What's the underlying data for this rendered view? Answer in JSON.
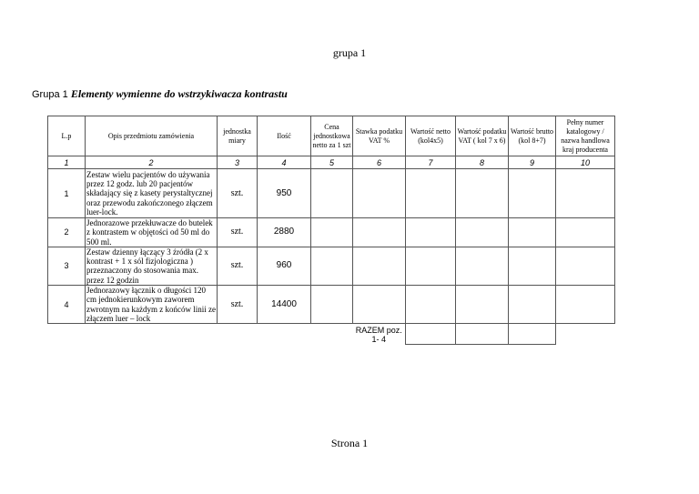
{
  "header": "grupa 1",
  "footer": "Strona 1",
  "group": {
    "prefix": "Grupa 1",
    "title": "Elementy wymienne do wstrzykiwacza kontrastu"
  },
  "columns": [
    "L.p",
    "Opis przedmiotu zamówienia",
    "jednostka miary",
    "Ilość",
    "Cena jednostkowa netto  za 1 szt",
    "Stawka podatku VAT %",
    "Wartość netto (kol4x5)",
    "Wartość podatku VAT ( kol 7 x 6)",
    "Wartość brutto (kol 8+7)",
    "Pełny numer katalogowy / nazwa handlowa kraj producenta"
  ],
  "column_numbers": [
    "1",
    "2",
    "3",
    "4",
    "5",
    "6",
    "7",
    "8",
    "9",
    "10"
  ],
  "rows": [
    {
      "lp": "1",
      "desc": "Zestaw wielu pacjentów do używania przez 12 godz. lub 20 pacjentów składający się z kasety perystaltycznej oraz przewodu zakończonego złączem luer-lock.",
      "unit": "szt.",
      "qty": "950"
    },
    {
      "lp": "2",
      "desc": "Jednorazowe przekłuwacze do butelek z kontrastem w objętości od 50 ml do 500 ml.",
      "unit": "szt.",
      "qty": "2880"
    },
    {
      "lp": "3",
      "desc": "Zestaw dzienny łączący 3 źródła (2 x kontrast + 1 x sól fizjologiczna ) przeznaczony do stosowania max. przez 12 godzin",
      "unit": "szt.",
      "qty": "960"
    },
    {
      "lp": "4",
      "desc": "Jednorazowy łącznik o długości 120 cm jednokierunkowym zaworem zwrotnym na każdym z końców linii ze złączem luer – lock",
      "unit": "szt.",
      "qty": "14400"
    }
  ],
  "total_label": "RAZEM poz. 1- 4"
}
